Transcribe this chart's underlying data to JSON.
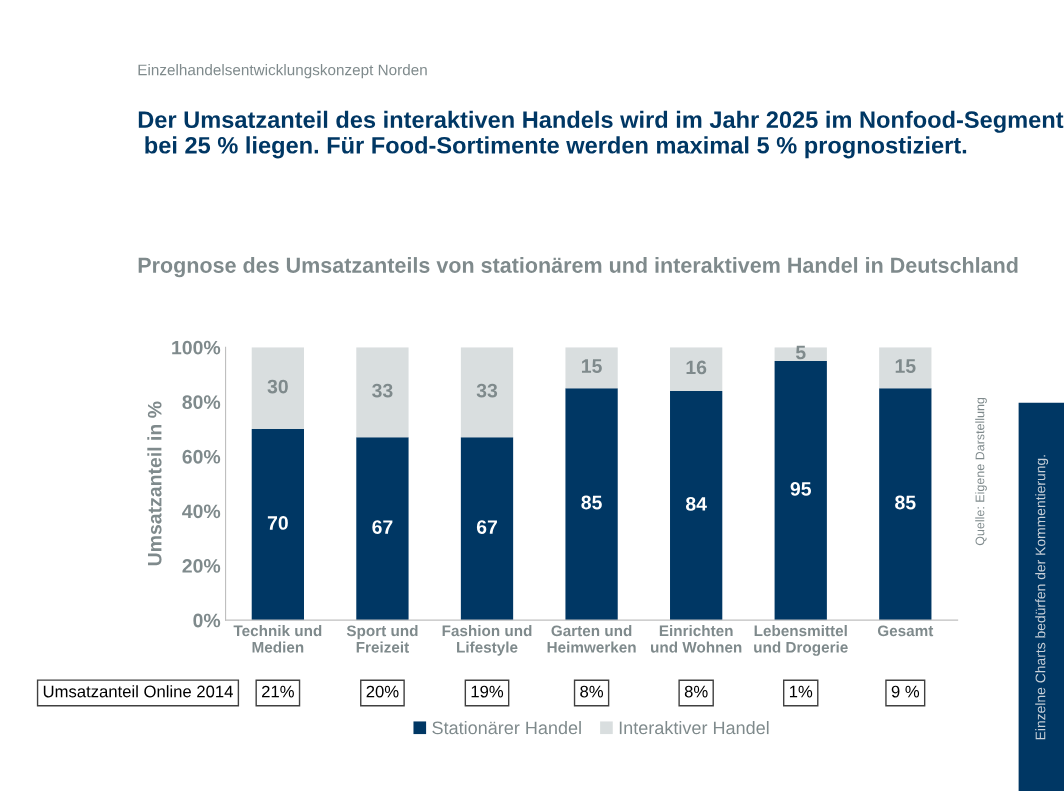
{
  "chart_data": {
    "type": "bar",
    "stacked": true,
    "title": "Der Umsatzanteil des interaktiven Handels wird im Jahr 2025 im Nonfood-Segment  bei 25 % liegen. Für Food-Sortimente werden maximal 5 % prognostiziert.",
    "subtitle": "Prognose des Umsatzanteils von stationärem und interaktivem Handel in Deutschland",
    "ylabel": "Umsatzanteil in %",
    "categories": [
      "Technik und\nMedien",
      "Sport und\nFreizeit",
      "Fashion und\nLifestyle",
      "Garten und\nHeimwerken",
      "Einrichten\nund Wohnen",
      "Lebensmittel\nund Drogerie",
      "Gesamt"
    ],
    "series": [
      {
        "name": "Stationärer Handel",
        "color": "#003764",
        "values": [
          70,
          67,
          67,
          85,
          84,
          95,
          85
        ]
      },
      {
        "name": "Interaktiver Handel",
        "color": "#d9dedf",
        "values": [
          30,
          33,
          33,
          15,
          16,
          5,
          15
        ]
      }
    ],
    "ylim": [
      0,
      100
    ],
    "yticks": [
      {
        "value": 0,
        "label": "0%"
      },
      {
        "value": 20,
        "label": "20%"
      },
      {
        "value": 40,
        "label": "40%"
      },
      {
        "value": 60,
        "label": "60%"
      },
      {
        "value": 80,
        "label": "80%"
      },
      {
        "value": 100,
        "label": "100%"
      }
    ],
    "data_labels": true,
    "grid": false,
    "legend": "bottom",
    "annotations": [
      "Einzelhandelsentwicklungskonzept Norden",
      "Umsatzanteil Online 2014",
      "21%",
      "20%",
      "19%",
      "8%",
      "8%",
      "1%",
      "9 %",
      "Quelle: Eigene Darstellung",
      "Einzelne Charts bedürfen der Kommentierung."
    ]
  }
}
